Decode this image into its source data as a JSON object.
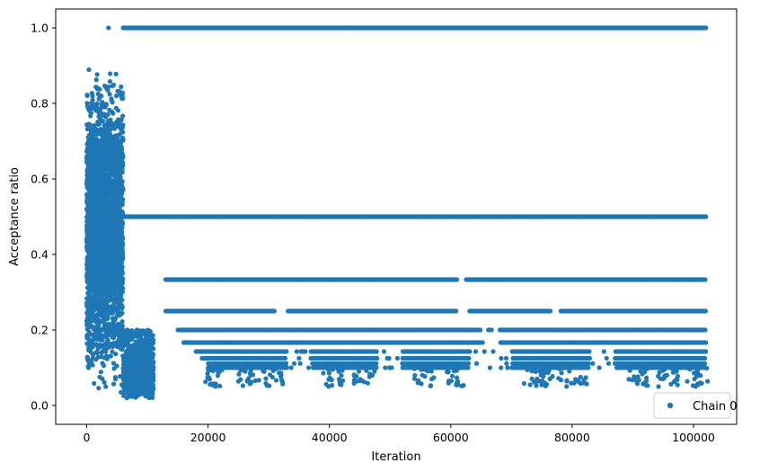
{
  "chart_data": {
    "type": "scatter",
    "title": "",
    "xlabel": "Iteration",
    "ylabel": "Acceptance ratio",
    "xlim": [
      -5100,
      107100
    ],
    "ylim": [
      -0.05,
      1.05
    ],
    "xticks": [
      0,
      20000,
      40000,
      60000,
      80000,
      100000
    ],
    "yticks": [
      0.0,
      0.2,
      0.4,
      0.6,
      0.8,
      1.0
    ],
    "xtick_labels": [
      "0",
      "20000",
      "40000",
      "60000",
      "80000",
      "100000"
    ],
    "ytick_labels": [
      "0.0",
      "0.2",
      "0.4",
      "0.6",
      "0.8",
      "1.0"
    ],
    "grid": false,
    "legend_position": "lower-right",
    "series": [
      {
        "name": "Chain 0",
        "color": "#1f77b4",
        "marker": "circle",
        "description_points": {
          "burn_in_range": [
            0,
            6000
          ],
          "burn_in_y_range": [
            0.03,
            0.89
          ],
          "transition_range": [
            6000,
            11000
          ],
          "transition_y_range": [
            0.0,
            0.2
          ],
          "x_max": 102000,
          "levels": [
            1.0,
            0.5,
            0.3333,
            0.25,
            0.2,
            0.1667,
            0.1429,
            0.125,
            0.1111,
            0.1
          ],
          "outliers": [
            [
              3600,
              1.0
            ]
          ]
        }
      }
    ]
  }
}
